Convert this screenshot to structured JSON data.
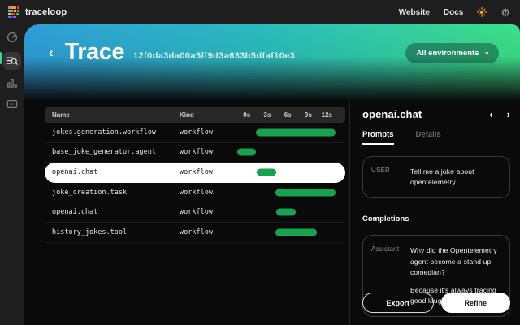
{
  "topbar": {
    "brand": "traceloop",
    "links": [
      {
        "label": "Website"
      },
      {
        "label": "Docs"
      }
    ]
  },
  "sidebar": {
    "items": [
      {
        "id": "dashboard",
        "icon": "gauge-icon",
        "active": false
      },
      {
        "id": "traces",
        "icon": "list-search-icon",
        "active": true
      },
      {
        "id": "metrics",
        "icon": "bar-chart-icon",
        "active": false
      },
      {
        "id": "playground",
        "icon": "terminal-play-icon",
        "active": false
      }
    ]
  },
  "header": {
    "title": "Trace",
    "trace_id": "12f0da3da00a5ff9d3a633b5dfaf10e3",
    "env_selector": "All environments"
  },
  "table": {
    "col_name": "Name",
    "col_kind": "Kind",
    "ticks": [
      "0s",
      "3s",
      "6s",
      "9s",
      "12s"
    ],
    "rows": [
      {
        "name": "jokes.generation.workflow",
        "kind": "workflow",
        "selected": false,
        "bar": {
          "left_pct": 22.5,
          "width_pct": 69.2,
          "approx_start_s": 1.6,
          "approx_end_s": 13.3
        }
      },
      {
        "name": "base_joke_generator.agent",
        "kind": "workflow",
        "selected": false,
        "bar": {
          "left_pct": 6.1,
          "width_pct": 16.4,
          "approx_start_s": 0,
          "approx_end_s": 1.6
        }
      },
      {
        "name": "openai.chat",
        "kind": "workflow",
        "selected": true,
        "bar": {
          "left_pct": 23.2,
          "width_pct": 16.9,
          "approx_start_s": 1.7,
          "approx_end_s": 4.6
        }
      },
      {
        "name": "joke_creation.task",
        "kind": "workflow",
        "selected": false,
        "bar": {
          "left_pct": 39.6,
          "width_pct": 52.1,
          "approx_start_s": 4.5,
          "approx_end_s": 13.3
        }
      },
      {
        "name": "openai.chat",
        "kind": "workflow",
        "selected": false,
        "bar": {
          "left_pct": 40.1,
          "width_pct": 17.1,
          "approx_start_s": 4.6,
          "approx_end_s": 7.5
        }
      },
      {
        "name": "history_jokes.tool",
        "kind": "workflow",
        "selected": false,
        "bar": {
          "left_pct": 39.6,
          "width_pct": 35.7,
          "approx_start_s": 4.5,
          "approx_end_s": 10.6
        }
      }
    ]
  },
  "detail": {
    "title": "openai.chat",
    "tabs": [
      {
        "label": "Prompts",
        "active": true
      },
      {
        "label": "Details",
        "active": false
      }
    ],
    "prompt": {
      "role": "USER",
      "text": "Tell me a joke about opentelemetry"
    },
    "completions_label": "Completions",
    "completion": {
      "role": "Assistant",
      "paragraphs": [
        "Why did the Opentelemetry agent become a stand up comedian?",
        "Because it's always tracing good laughs!"
      ]
    },
    "actions": {
      "export": "Export",
      "refine": "Refine"
    }
  },
  "colors": {
    "span_bar_green": "#17a24f",
    "gradient_blue": "#2f9ed9",
    "gradient_green": "#3ce089",
    "sidebar_accent": "#35d98f",
    "sun_icon": "#f0a321"
  }
}
